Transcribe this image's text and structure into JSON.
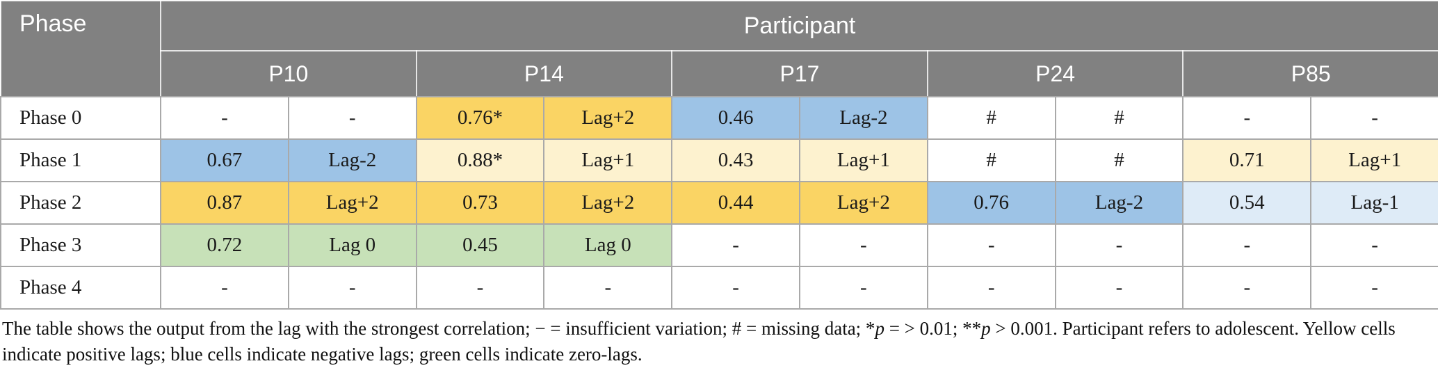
{
  "header": {
    "corner": "Phase",
    "group": "Participant",
    "participants": [
      "P10",
      "P14",
      "P17",
      "P24",
      "P85"
    ]
  },
  "rows": [
    {
      "label": "Phase 0",
      "cells": [
        {
          "value": "-",
          "lag": "-",
          "color": "none"
        },
        {
          "value": "0.76*",
          "lag": "Lag+2",
          "color": "positive_strong"
        },
        {
          "value": "0.46",
          "lag": "Lag-2",
          "color": "negative_strong"
        },
        {
          "value": "#",
          "lag": "#",
          "color": "none"
        },
        {
          "value": "-",
          "lag": "-",
          "color": "none"
        }
      ]
    },
    {
      "label": "Phase 1",
      "cells": [
        {
          "value": "0.67",
          "lag": "Lag-2",
          "color": "negative_strong"
        },
        {
          "value": "0.88*",
          "lag": "Lag+1",
          "color": "positive_light"
        },
        {
          "value": "0.43",
          "lag": "Lag+1",
          "color": "positive_light"
        },
        {
          "value": "#",
          "lag": "#",
          "color": "none"
        },
        {
          "value": "0.71",
          "lag": "Lag+1",
          "color": "positive_light"
        }
      ]
    },
    {
      "label": "Phase 2",
      "cells": [
        {
          "value": "0.87",
          "lag": "Lag+2",
          "color": "positive_strong"
        },
        {
          "value": "0.73",
          "lag": "Lag+2",
          "color": "positive_strong"
        },
        {
          "value": "0.44",
          "lag": "Lag+2",
          "color": "positive_strong"
        },
        {
          "value": "0.76",
          "lag": "Lag-2",
          "color": "negative_strong"
        },
        {
          "value": "0.54",
          "lag": "Lag-1",
          "color": "negative_light"
        }
      ]
    },
    {
      "label": "Phase 3",
      "cells": [
        {
          "value": "0.72",
          "lag": "Lag 0",
          "color": "zero"
        },
        {
          "value": "0.45",
          "lag": "Lag 0",
          "color": "zero"
        },
        {
          "value": "-",
          "lag": "-",
          "color": "none"
        },
        {
          "value": "-",
          "lag": "-",
          "color": "none"
        },
        {
          "value": "-",
          "lag": "-",
          "color": "none"
        }
      ]
    },
    {
      "label": "Phase 4",
      "cells": [
        {
          "value": "-",
          "lag": "-",
          "color": "none"
        },
        {
          "value": "-",
          "lag": "-",
          "color": "none"
        },
        {
          "value": "-",
          "lag": "-",
          "color": "none"
        },
        {
          "value": "-",
          "lag": "-",
          "color": "none"
        },
        {
          "value": "-",
          "lag": "-",
          "color": "none"
        }
      ]
    }
  ],
  "colors": {
    "header_bg": "#818181",
    "positive_strong": "#FAD464",
    "positive_light": "#FDF2CF",
    "negative_strong": "#9DC3E6",
    "negative_light": "#DEEBF7",
    "zero": "#C7E1B8",
    "none": "#FFFFFF"
  },
  "footnote": {
    "parts": [
      {
        "text": "The table shows the output from the lag with the strongest correlation; − = insufficient variation; # = missing data; *",
        "italic": false
      },
      {
        "text": "p",
        "italic": true
      },
      {
        "text": " = > 0.01; **",
        "italic": false
      },
      {
        "text": "p",
        "italic": true
      },
      {
        "text": " > 0.001. Participant refers to adolescent. Yellow cells indicate positive lags; blue cells indicate negative lags; green cells indicate zero-lags.",
        "italic": false
      }
    ]
  }
}
